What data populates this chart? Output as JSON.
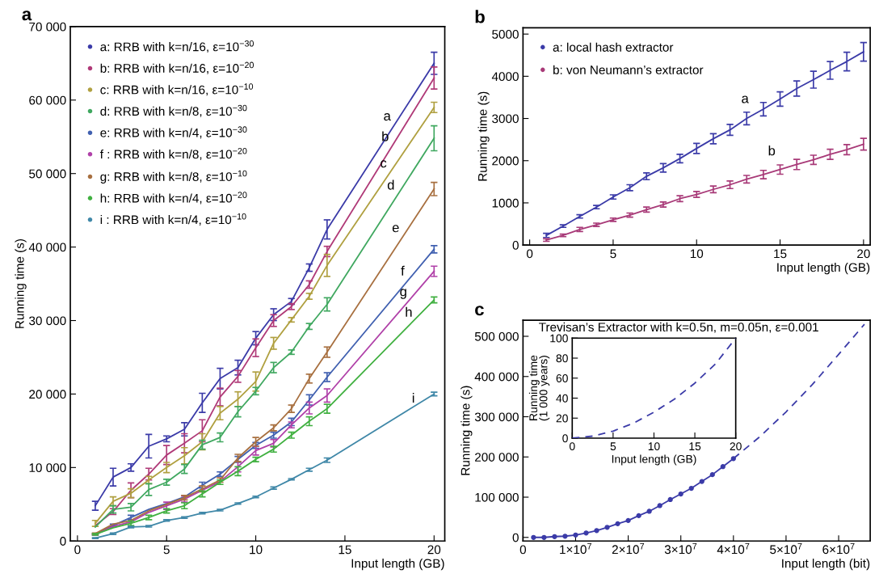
{
  "chart_data": [
    {
      "type": "line",
      "title": "a",
      "xlabel": "Input length (GB)",
      "ylabel": "Running time (s)",
      "legend": "top left",
      "x": [
        1,
        2,
        3,
        4,
        5,
        6,
        7,
        8,
        9,
        10,
        11,
        12,
        13,
        14,
        20
      ],
      "xlim": [
        -0.4,
        20.6
      ],
      "xticks": [
        0,
        5,
        10,
        15,
        20
      ],
      "ylim": [
        0,
        70000
      ],
      "yticks": [
        0,
        {
          "value": 10000,
          "label": "10 000"
        },
        {
          "value": 20000,
          "label": "20 000"
        },
        {
          "value": 30000,
          "label": "30 000"
        },
        {
          "value": 40000,
          "label": "40 000"
        },
        {
          "value": 50000,
          "label": "50 000"
        },
        {
          "value": 60000,
          "label": "60 000"
        },
        {
          "value": 70000,
          "label": "70 000"
        }
      ],
      "series": [
        {
          "name": "a: RRB with k=n/16, ε=10$^{−30}$",
          "color": "#3b3ba8",
          "values": [
            4800,
            8700,
            10000,
            12900,
            13900,
            15200,
            18800,
            22100,
            23600,
            27600,
            30800,
            32600,
            37200,
            42400,
            65000
          ],
          "errors": [
            600,
            1200,
            500,
            1600,
            400,
            900,
            1300,
            1400,
            1000,
            900,
            800,
            400,
            500,
            1300,
            1500
          ]
        },
        {
          "name": "b: RRB with k=n/16, ε=10$^{−20}$",
          "color": "#b03a78",
          "values": [
            2100,
            4000,
            6900,
            9100,
            11700,
            13300,
            15000,
            19600,
            22400,
            26300,
            30000,
            31900,
            34900,
            39400,
            63000
          ],
          "errors": [
            null,
            400,
            1000,
            800,
            1300,
            1300,
            1500,
            1200,
            800,
            1200,
            800,
            400,
            500,
            700,
            1500
          ]
        },
        {
          "name": "c: RRB with k=n/16, ε=10$^{−10}$",
          "color": "#b0a040",
          "values": [
            2400,
            5400,
            6500,
            8300,
            10000,
            11600,
            13500,
            17400,
            19300,
            21700,
            26900,
            30100,
            33300,
            37500,
            59000
          ],
          "errors": [
            400,
            600,
            600,
            500,
            700,
            1100,
            1100,
            900,
            1000,
            1300,
            800,
            300,
            400,
            1500,
            700
          ]
        },
        {
          "name": "d: RRB with k=n/8, ε=10$^{−30}$",
          "color": "#40a860",
          "values": [
            1900,
            4300,
            4600,
            7000,
            8000,
            9800,
            13100,
            14100,
            17600,
            20400,
            23600,
            25700,
            29200,
            32200,
            54800
          ],
          "errors": [
            null,
            500,
            500,
            800,
            400,
            600,
            600,
            600,
            700,
            500,
            700,
            300,
            400,
            900,
            1700
          ]
        },
        {
          "name": "e: RRB with k=n/4, ε=10$^{−30}$",
          "color": "#4060b0",
          "values": [
            900,
            2100,
            3200,
            4300,
            5100,
            6000,
            7600,
            9100,
            11100,
            13000,
            14400,
            16200,
            19200,
            22300,
            39700
          ],
          "errors": [
            100,
            200,
            300,
            null,
            null,
            null,
            400,
            300,
            400,
            400,
            400,
            500,
            700,
            600,
            500
          ]
        },
        {
          "name": "f : RRB with k=n/8, ε=10$^{−20}$",
          "color": "#b040a8",
          "values": [
            900,
            2000,
            2600,
            3900,
            4800,
            5700,
            6900,
            8100,
            10100,
            12300,
            13300,
            15800,
            18100,
            19800,
            36700
          ],
          "errors": [
            100,
            null,
            null,
            null,
            500,
            400,
            null,
            null,
            700,
            600,
            500,
            400,
            800,
            900,
            700
          ]
        },
        {
          "name": "g: RRB with k=n/8, ε=10$^{−10}$",
          "color": "#a87040",
          "values": [
            1000,
            2300,
            2800,
            4100,
            5000,
            5900,
            7100,
            8300,
            11300,
            13500,
            15400,
            18000,
            22100,
            25700,
            47900
          ],
          "errors": [
            100,
            null,
            null,
            null,
            null,
            300,
            400,
            300,
            500,
            600,
            400,
            500,
            600,
            700,
            900
          ]
        },
        {
          "name": "h: RRB with k=n/4, ε=10$^{−20}$",
          "color": "#40b040",
          "values": [
            900,
            1800,
            2400,
            3200,
            4100,
            4800,
            6400,
            8000,
            9500,
            11100,
            12500,
            14400,
            16300,
            18000,
            32800
          ],
          "errors": [
            100,
            null,
            300,
            300,
            300,
            400,
            400,
            300,
            600,
            300,
            400,
            400,
            600,
            600,
            400
          ]
        },
        {
          "name": "i : RRB with k=n/4, ε=10$^{−10}$",
          "color": "#4088a8",
          "values": [
            400,
            1000,
            1900,
            2000,
            2800,
            3200,
            3800,
            4200,
            5100,
            6000,
            7200,
            8400,
            9700,
            11000,
            20000
          ],
          "errors": [
            50,
            100,
            100,
            100,
            100,
            100,
            100,
            100,
            100,
            100,
            150,
            100,
            200,
            300,
            250
          ]
        }
      ],
      "annotations": [
        {
          "text": "a",
          "x": 18.06,
          "y": 57700
        },
        {
          "text": "b",
          "x": 17.95,
          "y": 54900
        },
        {
          "text": "c",
          "x": 17.85,
          "y": 51300
        },
        {
          "text": "d",
          "x": 18.27,
          "y": 48300
        },
        {
          "text": "e",
          "x": 18.54,
          "y": 42500
        },
        {
          "text": "f",
          "x": 18.93,
          "y": 36600
        },
        {
          "text": "g",
          "x": 18.97,
          "y": 33800
        },
        {
          "text": "h",
          "x": 19.27,
          "y": 31000
        },
        {
          "text": "i",
          "x": 19.53,
          "y": 19300
        }
      ]
    },
    {
      "type": "line",
      "title": "b",
      "xlabel": "Input length (GB)",
      "ylabel": "Running time (s)",
      "legend": "top left",
      "x": [
        1,
        2,
        3,
        4,
        5,
        6,
        7,
        8,
        9,
        10,
        11,
        12,
        13,
        14,
        15,
        16,
        17,
        18,
        19,
        20
      ],
      "xlim": [
        -0.4,
        20.4
      ],
      "xticks": [
        0,
        5,
        10,
        15,
        20
      ],
      "ylim": [
        0,
        5150
      ],
      "yticks": [
        0,
        1000,
        2000,
        3000,
        4000,
        5000
      ],
      "series": [
        {
          "name": "a: local hash extractor",
          "color": "#3b3ba8",
          "values": [
            230,
            450,
            680,
            900,
            1140,
            1360,
            1630,
            1830,
            2050,
            2290,
            2520,
            2730,
            3000,
            3220,
            3460,
            3710,
            3920,
            4140,
            4350,
            4580
          ],
          "errors": [
            50,
            30,
            40,
            40,
            50,
            70,
            80,
            100,
            100,
            120,
            120,
            130,
            150,
            160,
            170,
            180,
            200,
            210,
            220,
            220
          ]
        },
        {
          "name": "b: von Neumann’s extractor",
          "color": "#a83a78",
          "values": [
            120,
            230,
            370,
            480,
            600,
            710,
            840,
            960,
            1100,
            1200,
            1320,
            1430,
            1560,
            1670,
            1790,
            1910,
            2020,
            2150,
            2260,
            2390
          ],
          "errors": [
            30,
            30,
            50,
            40,
            40,
            50,
            60,
            60,
            70,
            70,
            80,
            90,
            90,
            100,
            110,
            120,
            110,
            120,
            120,
            140
          ]
        }
      ],
      "annotations": [
        {
          "text": "a",
          "x": 12.9,
          "y": 2970
        },
        {
          "text": "b",
          "x": 14.5,
          "y": 1730
        }
      ]
    },
    {
      "type": "line",
      "title": "c",
      "xlabel": "Input length (bit)",
      "ylabel": "Running time (s)",
      "xlim": [
        0,
        66000000
      ],
      "ylim": [
        -9000,
        540000
      ],
      "xticks": [
        0,
        {
          "value": 10000000,
          "label": "1×10$^{7}$"
        },
        {
          "value": 20000000,
          "label": "2×10$^{7}$"
        },
        {
          "value": 30000000,
          "label": "3×10$^{7}$"
        },
        {
          "value": 40000000,
          "label": "4×10$^{7}$"
        },
        {
          "value": 50000000,
          "label": "5×10$^{7}$"
        },
        {
          "value": 60000000,
          "label": "6×10$^{7}$"
        }
      ],
      "yticks": [
        0,
        {
          "value": 100000,
          "label": "100 000"
        },
        {
          "value": 200000,
          "label": "200 000"
        },
        {
          "value": 300000,
          "label": "300 000"
        },
        {
          "value": 400000,
          "label": "400 000"
        },
        {
          "value": 500000,
          "label": "500 000"
        }
      ],
      "series": [
        {
          "color": "#3b3ba8",
          "marker": "circle",
          "line_style": "solid",
          "x": [
            2000000,
            4000000,
            6000000,
            8000000,
            10000000,
            12000000,
            14000000,
            16000000,
            18000000,
            20000000,
            22000000,
            24000000,
            26000000,
            28000000,
            30000000,
            32000000,
            34000000,
            36000000,
            38000000,
            40000000
          ],
          "values": [
            0,
            0,
            2000,
            3000,
            6000,
            11000,
            17000,
            25000,
            34000,
            42000,
            54000,
            65000,
            79000,
            94000,
            108000,
            122000,
            139000,
            156000,
            176000,
            196000
          ]
        },
        {
          "color": "#3b3ba8",
          "marker": "none",
          "line_style": "dashed",
          "x": [
            40000000,
            45000000,
            50000000,
            55000000,
            60000000,
            64900000
          ],
          "values": [
            196000,
            250000,
            312000,
            380000,
            455000,
            530000
          ]
        }
      ],
      "annotations": [
        "Trevisan’s Extractor with k=0.5n, m=0.05n, ε=0.001"
      ]
    },
    {
      "type": "line",
      "xlabel": "Input length (GB)",
      "ylabel": "Running time\n(1 000 years)",
      "xlim": [
        0,
        20
      ],
      "xticks": [
        0,
        5,
        10,
        15,
        20
      ],
      "ylim": [
        0,
        100
      ],
      "yticks": [
        0,
        20,
        40,
        60,
        80,
        100
      ],
      "series": [
        {
          "color": "#3b3ba8",
          "line_style": "dashed",
          "x": [
            0,
            2.5,
            5,
            7.5,
            10,
            12.5,
            15,
            17.5,
            20
          ],
          "values": [
            0,
            2,
            7,
            15,
            26,
            39,
            55,
            74,
            100
          ]
        }
      ]
    }
  ]
}
